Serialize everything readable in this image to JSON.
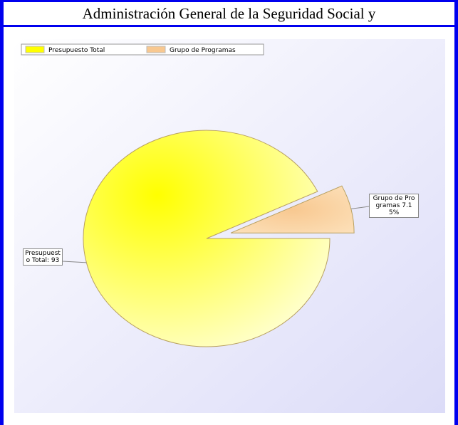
{
  "header": {
    "title": "Administración General de la Seguridad Social y"
  },
  "chart_data": {
    "type": "pie",
    "categories": [
      "Presupuesto Total",
      "Grupo de Programas"
    ],
    "values": [
      92.85,
      7.15
    ],
    "value_labels": [
      "Presupuesto Total: 93",
      "Grupo de Programas 7.15%"
    ],
    "colors": [
      "#ffff00",
      "#f8c890"
    ],
    "exploded": [
      false,
      true
    ],
    "legend": "top-left"
  }
}
